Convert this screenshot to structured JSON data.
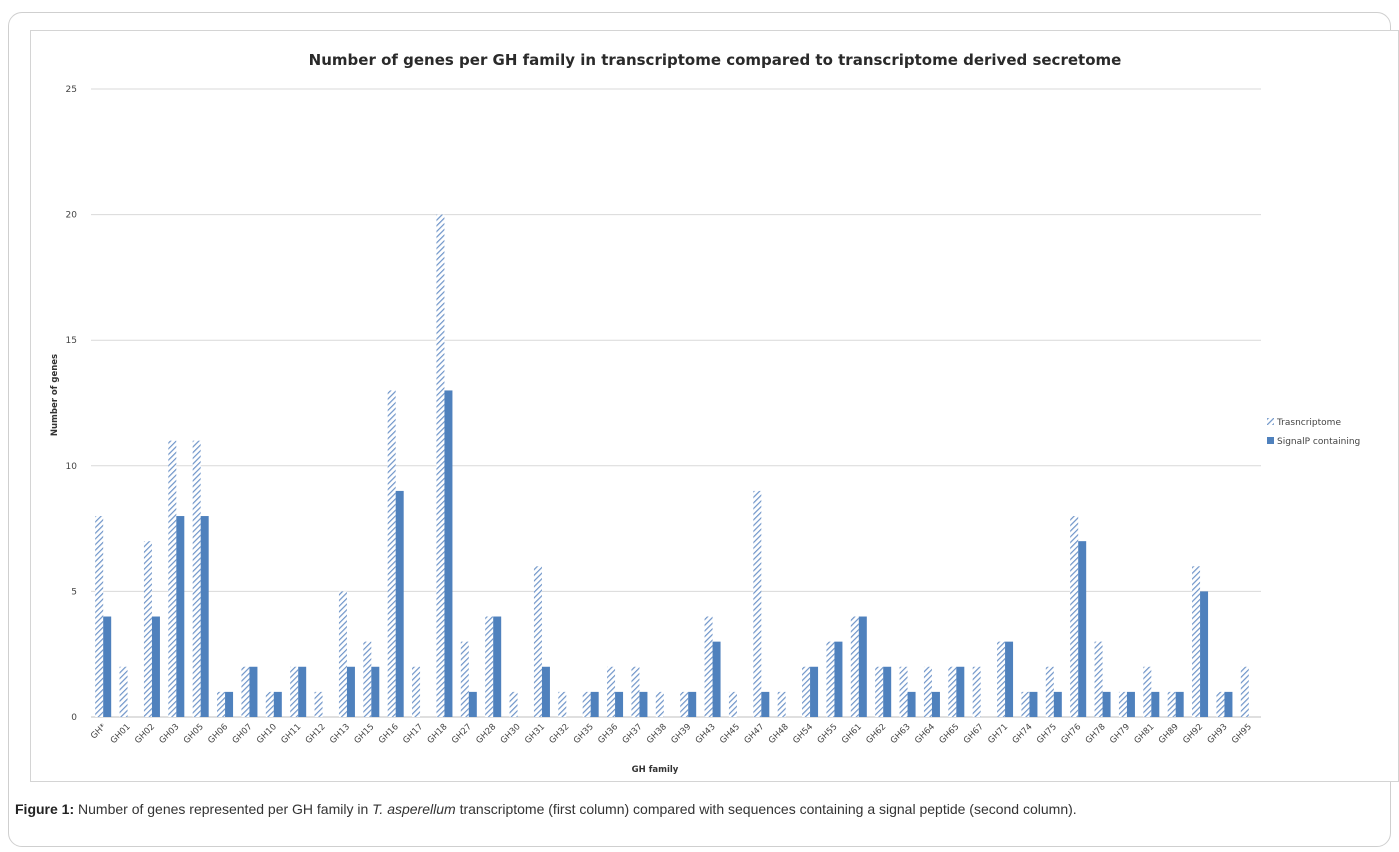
{
  "caption": {
    "label": "Figure 1:",
    "text_before": " Number of genes represented per GH family in ",
    "species": "T. asperellum",
    "text_after": " transcriptome (first column) compared with sequences containing a signal peptide (second column)."
  },
  "colors": {
    "transcriptome": "#6f95c9",
    "signalp": "#4f81bd",
    "gridline": "#d9d9d9",
    "axis": "#bfbfbf"
  },
  "chart_data": {
    "type": "bar",
    "title": "Number of genes per GH family  in transcriptome compared  to transcriptome derived secretome",
    "xlabel": "GH family",
    "ylabel": "Number of genes",
    "ylim": [
      0,
      25
    ],
    "yticks": [
      0,
      5,
      10,
      15,
      20,
      25
    ],
    "grid": true,
    "legend_position": "right",
    "categories": [
      "GH*",
      "GH01",
      "GH02",
      "GH03",
      "GH05",
      "GH06",
      "GH07",
      "GH10",
      "GH11",
      "GH12",
      "GH13",
      "GH15",
      "GH16",
      "GH17",
      "GH18",
      "GH27",
      "GH28",
      "GH30",
      "GH31",
      "GH32",
      "GH35",
      "GH36",
      "GH37",
      "GH38",
      "GH39",
      "GH43",
      "GH45",
      "GH47",
      "GH48",
      "GH54",
      "GH55",
      "GH61",
      "GH62",
      "GH63",
      "GH64",
      "GH65",
      "GH67",
      "GH71",
      "GH74",
      "GH75",
      "GH76",
      "GH78",
      "GH79",
      "GH81",
      "GH89",
      "GH92",
      "GH93",
      "GH95"
    ],
    "series": [
      {
        "name": "Trasncriptome",
        "pattern": "diagonal-hatch",
        "values": [
          8,
          2,
          7,
          11,
          11,
          1,
          2,
          1,
          2,
          1,
          5,
          3,
          13,
          2,
          20,
          3,
          4,
          1,
          6,
          1,
          1,
          2,
          2,
          1,
          1,
          4,
          1,
          9,
          1,
          2,
          3,
          4,
          2,
          2,
          2,
          2,
          2,
          3,
          1,
          2,
          8,
          3,
          1,
          2,
          1,
          6,
          1,
          2
        ]
      },
      {
        "name": "SignalP containing",
        "pattern": "solid",
        "values": [
          4,
          0,
          4,
          8,
          8,
          1,
          2,
          1,
          2,
          0,
          2,
          2,
          9,
          0,
          13,
          1,
          4,
          0,
          2,
          0,
          1,
          1,
          1,
          0,
          1,
          3,
          0,
          1,
          0,
          2,
          3,
          4,
          2,
          1,
          1,
          2,
          0,
          3,
          1,
          1,
          7,
          1,
          1,
          1,
          1,
          5,
          1,
          0
        ]
      }
    ]
  }
}
